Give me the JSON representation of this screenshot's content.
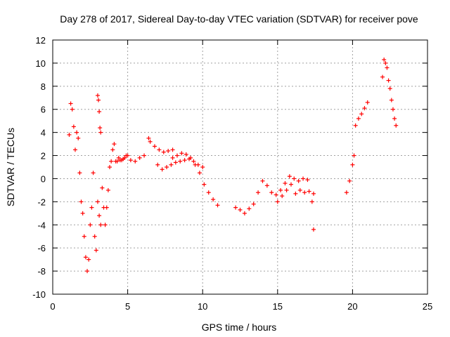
{
  "chart_data": {
    "type": "scatter",
    "title": "Day 278 of 2017, Sidereal Day-to-day VTEC variation (SDTVAR) for receiver pove",
    "xlabel": "GPS time / hours",
    "ylabel": "SDTVAR / TECUs",
    "xlim": [
      0,
      25
    ],
    "ylim": [
      -10,
      12
    ],
    "xticks": [
      0,
      5,
      10,
      15,
      20,
      25
    ],
    "yticks": [
      -10,
      -8,
      -6,
      -4,
      -2,
      0,
      2,
      4,
      6,
      8,
      10,
      12
    ],
    "grid": true,
    "marker": "+",
    "marker_color": "#ff0000",
    "series": [
      {
        "name": "SDTVAR",
        "x": [
          1.1,
          1.2,
          1.3,
          1.4,
          1.5,
          1.6,
          1.7,
          1.8,
          1.9,
          2.0,
          2.1,
          2.2,
          2.3,
          2.4,
          2.5,
          2.6,
          2.7,
          2.8,
          2.9,
          3.0,
          3.1,
          3.2,
          3.3,
          3.4,
          3.5,
          3.6,
          3.7,
          3.8,
          3.9,
          4.0,
          4.1,
          4.2,
          4.3,
          4.4,
          4.5,
          4.6,
          4.7,
          4.8,
          4.9,
          5.0,
          3.0,
          3.05,
          3.1,
          3.15,
          3.2,
          5.2,
          5.5,
          5.8,
          6.1,
          6.4,
          6.5,
          6.8,
          7.1,
          7.4,
          7.7,
          8.0,
          7.0,
          7.3,
          7.6,
          7.9,
          8.2,
          8.5,
          8.8,
          9.1,
          9.4,
          9.7,
          10.0,
          8.0,
          8.3,
          8.6,
          8.9,
          9.2,
          9.5,
          9.8,
          10.1,
          10.4,
          10.7,
          11.0,
          12.2,
          12.5,
          12.8,
          13.1,
          13.4,
          13.7,
          14.0,
          14.3,
          14.6,
          14.9,
          15.2,
          15.5,
          15.8,
          16.1,
          16.4,
          16.7,
          17.0,
          17.3,
          15.0,
          15.3,
          15.6,
          15.9,
          16.2,
          16.5,
          16.8,
          17.1,
          17.4,
          17.4,
          19.6,
          19.8,
          20.0,
          20.1,
          20.2,
          20.4,
          20.6,
          20.8,
          21.0,
          22.0,
          22.1,
          22.2,
          22.3,
          22.4,
          22.5,
          22.6,
          22.7,
          22.8,
          22.9
        ],
        "y": [
          3.8,
          6.5,
          6.0,
          4.5,
          2.5,
          4.0,
          3.5,
          0.5,
          -2.0,
          -3.0,
          -5.0,
          -6.8,
          -8.0,
          -7.0,
          -4.0,
          -2.5,
          0.5,
          -5.0,
          -6.2,
          -2.0,
          -3.2,
          -4.0,
          -0.8,
          -2.5,
          -4.0,
          -2.5,
          -1.0,
          1.0,
          1.5,
          2.5,
          3.0,
          1.5,
          1.5,
          1.8,
          1.6,
          1.6,
          1.7,
          1.8,
          2.0,
          2.0,
          7.2,
          6.8,
          5.8,
          4.4,
          4.0,
          1.6,
          1.5,
          1.8,
          2.0,
          3.5,
          3.2,
          2.8,
          2.5,
          2.3,
          2.4,
          2.5,
          1.2,
          0.8,
          1.0,
          1.2,
          1.4,
          1.5,
          1.6,
          1.7,
          1.5,
          1.2,
          1.0,
          1.8,
          2.0,
          2.2,
          2.1,
          1.8,
          1.2,
          0.5,
          -0.5,
          -1.2,
          -1.8,
          -2.3,
          -2.5,
          -2.7,
          -3.0,
          -2.6,
          -2.2,
          -1.2,
          -0.2,
          -0.6,
          -1.2,
          -1.4,
          -1.0,
          -0.4,
          0.2,
          0.0,
          -0.2,
          0.0,
          -0.1,
          -2.0,
          -2.0,
          -1.5,
          -1.0,
          -0.5,
          -1.3,
          -1.0,
          -1.2,
          -1.1,
          -1.3,
          -4.4,
          -1.2,
          -0.2,
          1.2,
          2.0,
          4.6,
          5.2,
          5.6,
          6.1,
          6.6,
          8.8,
          10.3,
          10.0,
          9.6,
          8.5,
          7.8,
          6.8,
          6.0,
          5.2,
          4.6
        ]
      }
    ]
  }
}
